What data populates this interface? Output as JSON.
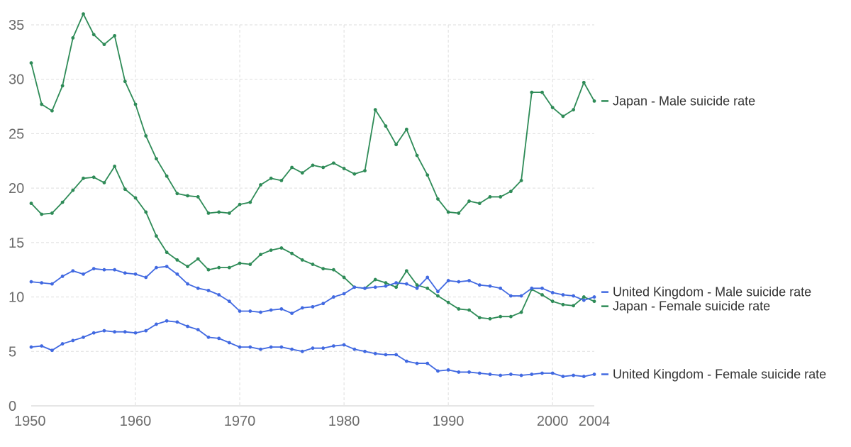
{
  "chart_data": {
    "type": "line",
    "title": "",
    "xlabel": "",
    "ylabel": "",
    "xlim": [
      1950,
      2004
    ],
    "ylim": [
      0,
      35
    ],
    "x_ticks": [
      "1950",
      "1960",
      "1970",
      "1980",
      "1990",
      "2000",
      "2004"
    ],
    "y_ticks": [
      "0",
      "5",
      "10",
      "15",
      "20",
      "25",
      "30",
      "35"
    ],
    "grid": true,
    "legend_placement": "right, at line ends",
    "x": [
      1950,
      1951,
      1952,
      1953,
      1954,
      1955,
      1956,
      1957,
      1958,
      1959,
      1960,
      1961,
      1962,
      1963,
      1964,
      1965,
      1966,
      1967,
      1968,
      1969,
      1970,
      1971,
      1972,
      1973,
      1974,
      1975,
      1976,
      1977,
      1978,
      1979,
      1980,
      1981,
      1982,
      1983,
      1984,
      1985,
      1986,
      1987,
      1988,
      1989,
      1990,
      1991,
      1992,
      1993,
      1994,
      1995,
      1996,
      1997,
      1998,
      1999,
      2000,
      2001,
      2002,
      2003,
      2004
    ],
    "series": [
      {
        "name": "Japan - Male suicide rate",
        "color": "#2e8b57",
        "values": [
          31.5,
          27.7,
          27.1,
          29.4,
          33.8,
          36.0,
          34.1,
          33.2,
          34.0,
          29.8,
          27.7,
          24.8,
          22.7,
          21.1,
          19.5,
          19.3,
          19.2,
          17.7,
          17.8,
          17.7,
          18.5,
          18.7,
          20.3,
          20.9,
          20.7,
          21.9,
          21.4,
          22.1,
          21.9,
          22.3,
          21.8,
          21.3,
          21.6,
          27.2,
          25.7,
          24.0,
          25.4,
          23.0,
          21.2,
          19.0,
          17.8,
          17.7,
          18.8,
          18.6,
          19.2,
          19.2,
          19.7,
          20.7,
          28.8,
          28.8,
          27.4,
          26.6,
          27.2,
          29.7,
          28.0
        ]
      },
      {
        "name": "Japan - Female suicide rate",
        "color": "#2e8b57",
        "values": [
          18.6,
          17.6,
          17.7,
          18.7,
          19.8,
          20.9,
          21.0,
          20.5,
          22.0,
          19.9,
          19.1,
          17.8,
          15.6,
          14.1,
          13.4,
          12.8,
          13.5,
          12.5,
          12.7,
          12.7,
          13.1,
          13.0,
          13.9,
          14.3,
          14.5,
          14.0,
          13.4,
          13.0,
          12.6,
          12.5,
          11.8,
          10.9,
          10.8,
          11.6,
          11.3,
          10.9,
          12.4,
          11.1,
          10.8,
          10.1,
          9.5,
          8.9,
          8.8,
          8.1,
          8.0,
          8.2,
          8.2,
          8.6,
          10.7,
          10.2,
          9.6,
          9.3,
          9.2,
          10.0,
          9.6
        ]
      },
      {
        "name": "United Kingdom - Male suicide rate",
        "color": "#4169e1",
        "values": [
          11.4,
          11.3,
          11.2,
          11.9,
          12.4,
          12.1,
          12.6,
          12.5,
          12.5,
          12.2,
          12.1,
          11.8,
          12.7,
          12.8,
          12.1,
          11.2,
          10.8,
          10.6,
          10.2,
          9.6,
          8.7,
          8.7,
          8.6,
          8.8,
          8.9,
          8.5,
          9.0,
          9.1,
          9.4,
          10.0,
          10.3,
          10.9,
          10.8,
          10.9,
          11.0,
          11.3,
          11.2,
          10.8,
          11.8,
          10.5,
          11.5,
          11.4,
          11.5,
          11.1,
          11.0,
          10.8,
          10.1,
          10.1,
          10.8,
          10.8,
          10.4,
          10.2,
          10.1,
          9.7,
          10.0
        ]
      },
      {
        "name": "United Kingdom - Female suicide rate",
        "color": "#4169e1",
        "values": [
          5.4,
          5.5,
          5.1,
          5.7,
          6.0,
          6.3,
          6.7,
          6.9,
          6.8,
          6.8,
          6.7,
          6.9,
          7.5,
          7.8,
          7.7,
          7.3,
          7.0,
          6.3,
          6.2,
          5.8,
          5.4,
          5.4,
          5.2,
          5.4,
          5.4,
          5.2,
          5.0,
          5.3,
          5.3,
          5.5,
          5.6,
          5.2,
          5.0,
          4.8,
          4.7,
          4.7,
          4.1,
          3.9,
          3.9,
          3.2,
          3.3,
          3.1,
          3.1,
          3.0,
          2.9,
          2.8,
          2.9,
          2.8,
          2.9,
          3.0,
          3.0,
          2.7,
          2.8,
          2.7,
          2.9
        ]
      }
    ]
  }
}
